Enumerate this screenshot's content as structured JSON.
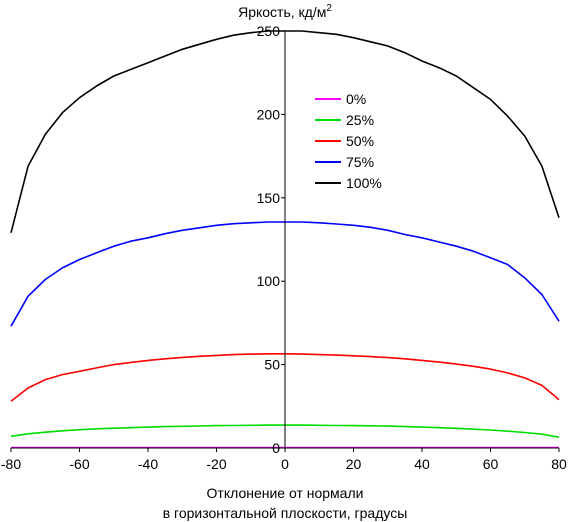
{
  "chart_data": {
    "type": "line",
    "title": "",
    "ylabel": "Яркость, кд/м",
    "ylabel_superscript": "2",
    "xlabel_line1": "Отклонение от нормали",
    "xlabel_line2": "в горизонтальной плоскости, градусы",
    "xlim": [
      -80,
      80
    ],
    "ylim": [
      0,
      250
    ],
    "x_ticks": [
      -80,
      -60,
      -40,
      -20,
      0,
      20,
      40,
      60,
      80
    ],
    "y_ticks": [
      0,
      50,
      100,
      150,
      200,
      250
    ],
    "grid": false,
    "legend_position": "center-right",
    "x": [
      -80,
      -75,
      -70,
      -65,
      -60,
      -55,
      -50,
      -45,
      -40,
      -35,
      -30,
      -25,
      -20,
      -15,
      -10,
      -5,
      0,
      5,
      10,
      15,
      20,
      25,
      30,
      35,
      40,
      45,
      50,
      55,
      60,
      65,
      70,
      75,
      80
    ],
    "series": [
      {
        "name": "0%",
        "color": "#ff00ff",
        "values": [
          0.3,
          0.3,
          0.3,
          0.3,
          0.3,
          0.3,
          0.3,
          0.3,
          0.3,
          0.3,
          0.3,
          0.3,
          0.3,
          0.3,
          0.3,
          0.3,
          0.3,
          0.3,
          0.3,
          0.3,
          0.3,
          0.3,
          0.3,
          0.3,
          0.3,
          0.3,
          0.3,
          0.3,
          0.3,
          0.3,
          0.3,
          0.3,
          0.3
        ]
      },
      {
        "name": "25%",
        "color": "#00dd00",
        "values": [
          7,
          8.5,
          9.5,
          10.3,
          11,
          11.5,
          11.9,
          12.2,
          12.5,
          12.8,
          13,
          13.2,
          13.4,
          13.5,
          13.6,
          13.7,
          13.7,
          13.7,
          13.6,
          13.5,
          13.4,
          13.3,
          13.1,
          12.8,
          12.5,
          12.2,
          11.8,
          11.3,
          10.8,
          10.1,
          9.3,
          8.3,
          6.5
        ]
      },
      {
        "name": "50%",
        "color": "#ff0000",
        "values": [
          28,
          36,
          41,
          44,
          46,
          48,
          50,
          51.3,
          52.5,
          53.5,
          54.3,
          55,
          55.5,
          56,
          56.3,
          56.5,
          56.5,
          56.3,
          56,
          55.7,
          55.3,
          54.8,
          54.2,
          53.5,
          52.5,
          51.5,
          50.3,
          49,
          47.3,
          45,
          42,
          37.5,
          29
        ]
      },
      {
        "name": "75%",
        "color": "#0000ff",
        "values": [
          73,
          91,
          101,
          108,
          113,
          117,
          121,
          124,
          126,
          128.5,
          130.5,
          132,
          133.5,
          134.5,
          135,
          135.5,
          135.5,
          135.5,
          135,
          134.3,
          133.5,
          132.3,
          130.5,
          128,
          126,
          123.5,
          121,
          118,
          114,
          110,
          102,
          92,
          76
        ]
      },
      {
        "name": "100%",
        "color": "#000000",
        "values": [
          129,
          169,
          188,
          201,
          210,
          217,
          223,
          227,
          231,
          235,
          239,
          242,
          245,
          247.5,
          249,
          250,
          250,
          250,
          249,
          248,
          246,
          243.5,
          241,
          237,
          232,
          228,
          223,
          216,
          209,
          199,
          187,
          169,
          138
        ]
      }
    ]
  }
}
